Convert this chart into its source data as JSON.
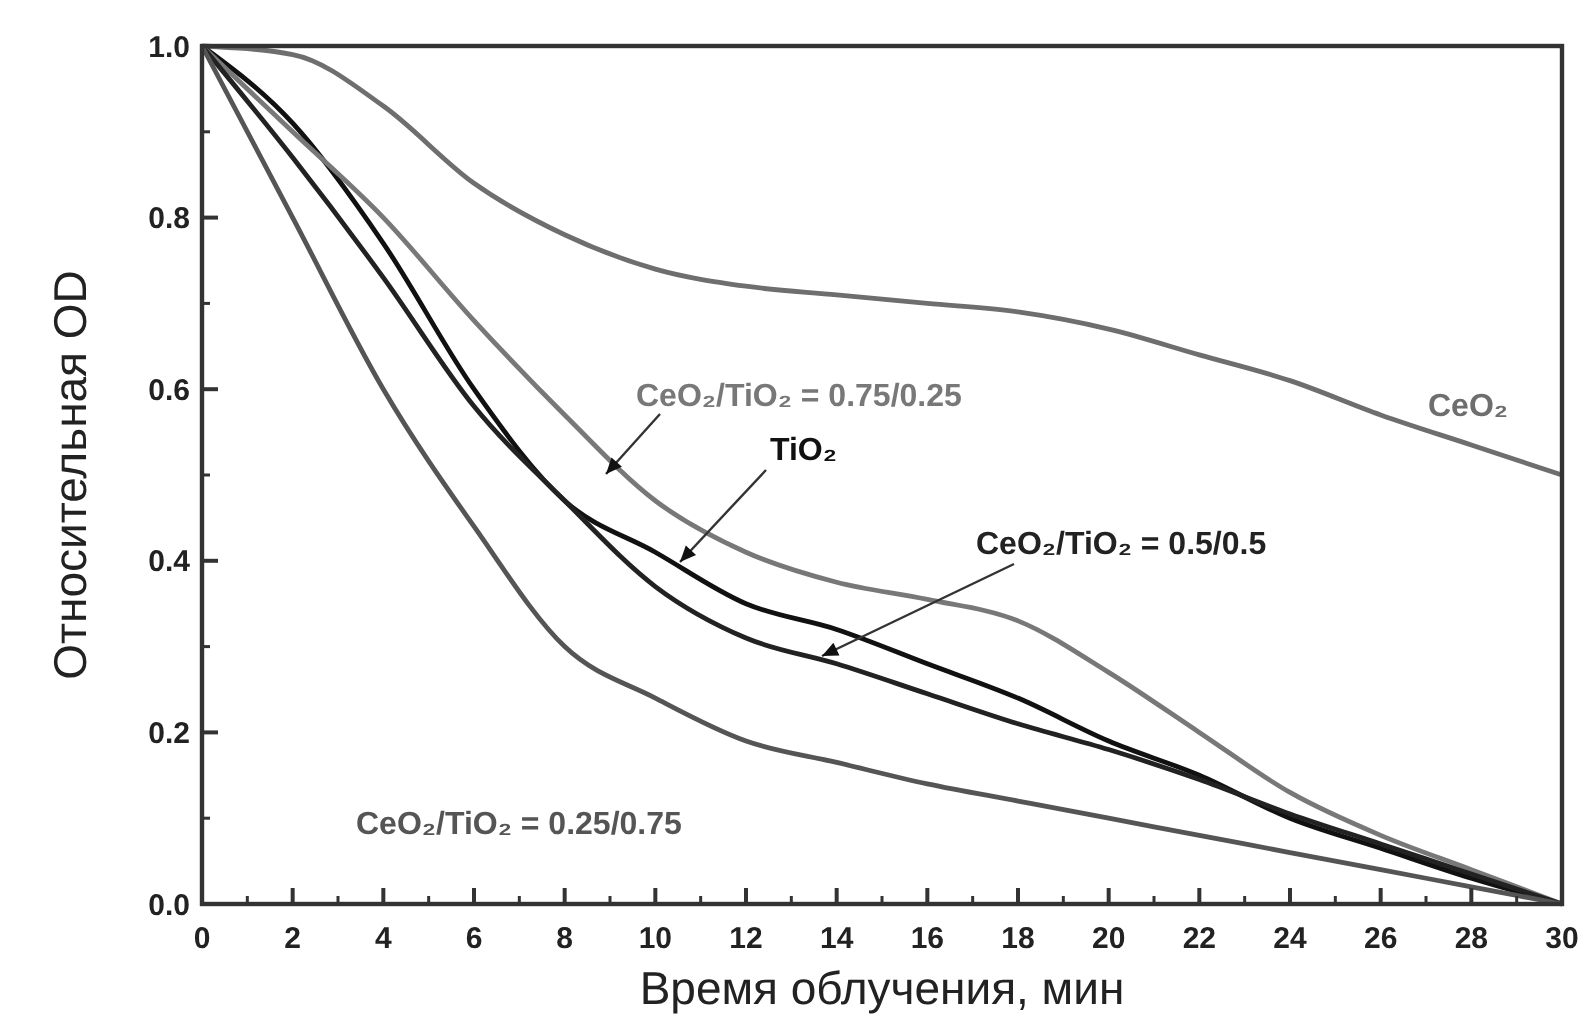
{
  "chart_data": {
    "type": "line",
    "xlabel": "Время облучения, мин",
    "ylabel": "Относительная OD",
    "x": [
      0,
      2,
      4,
      6,
      8,
      10,
      12,
      14,
      16,
      18,
      20,
      22,
      24,
      26,
      28,
      30
    ],
    "xlim": [
      0,
      30
    ],
    "xticks": [
      0,
      2,
      4,
      6,
      8,
      10,
      12,
      14,
      16,
      18,
      20,
      22,
      24,
      26,
      28,
      30
    ],
    "ylim": [
      0,
      1
    ],
    "yticks": [
      {
        "value": 0,
        "label": "0.0"
      },
      {
        "value": 0.2,
        "label": "0.2"
      },
      {
        "value": 0.4,
        "label": "0.4"
      },
      {
        "value": 0.6,
        "label": "0.6"
      },
      {
        "value": 0.8,
        "label": "0.8"
      },
      {
        "value": 1,
        "label": "1.0"
      }
    ],
    "grid": false,
    "legend": false,
    "marker": "none",
    "line_style": "solid",
    "series": [
      {
        "name": "CeO₂",
        "color": "#6e6e6e",
        "values": [
          1,
          0.99,
          0.93,
          0.84,
          0.78,
          0.74,
          0.72,
          0.71,
          0.7,
          0.69,
          0.67,
          0.64,
          0.61,
          0.57,
          0.535,
          0.5
        ]
      },
      {
        "name": "TiO₂",
        "color": "#111111",
        "values": [
          1,
          0.91,
          0.77,
          0.6,
          0.47,
          0.41,
          0.35,
          0.32,
          0.28,
          0.24,
          0.19,
          0.15,
          0.1,
          0.065,
          0.03,
          0
        ]
      },
      {
        "name": "CeO₂/TiO₂ = 0.75/0.25",
        "color": "#787878",
        "values": [
          1,
          0.9,
          0.8,
          0.68,
          0.57,
          0.47,
          0.41,
          0.375,
          0.355,
          0.33,
          0.27,
          0.2,
          0.13,
          0.08,
          0.04,
          0
        ]
      },
      {
        "name": "CeO₂/TiO₂ = 0.5/0.5",
        "color": "#222222",
        "values": [
          1,
          0.87,
          0.73,
          0.58,
          0.47,
          0.37,
          0.31,
          0.28,
          0.245,
          0.21,
          0.18,
          0.145,
          0.105,
          0.07,
          0.035,
          0
        ]
      },
      {
        "name": "CeO₂/TiO₂ = 0.25/0.75",
        "color": "#555555",
        "values": [
          1,
          0.8,
          0.6,
          0.44,
          0.3,
          0.24,
          0.19,
          0.165,
          0.14,
          0.12,
          0.1,
          0.08,
          0.06,
          0.04,
          0.02,
          0
        ]
      }
    ]
  }
}
